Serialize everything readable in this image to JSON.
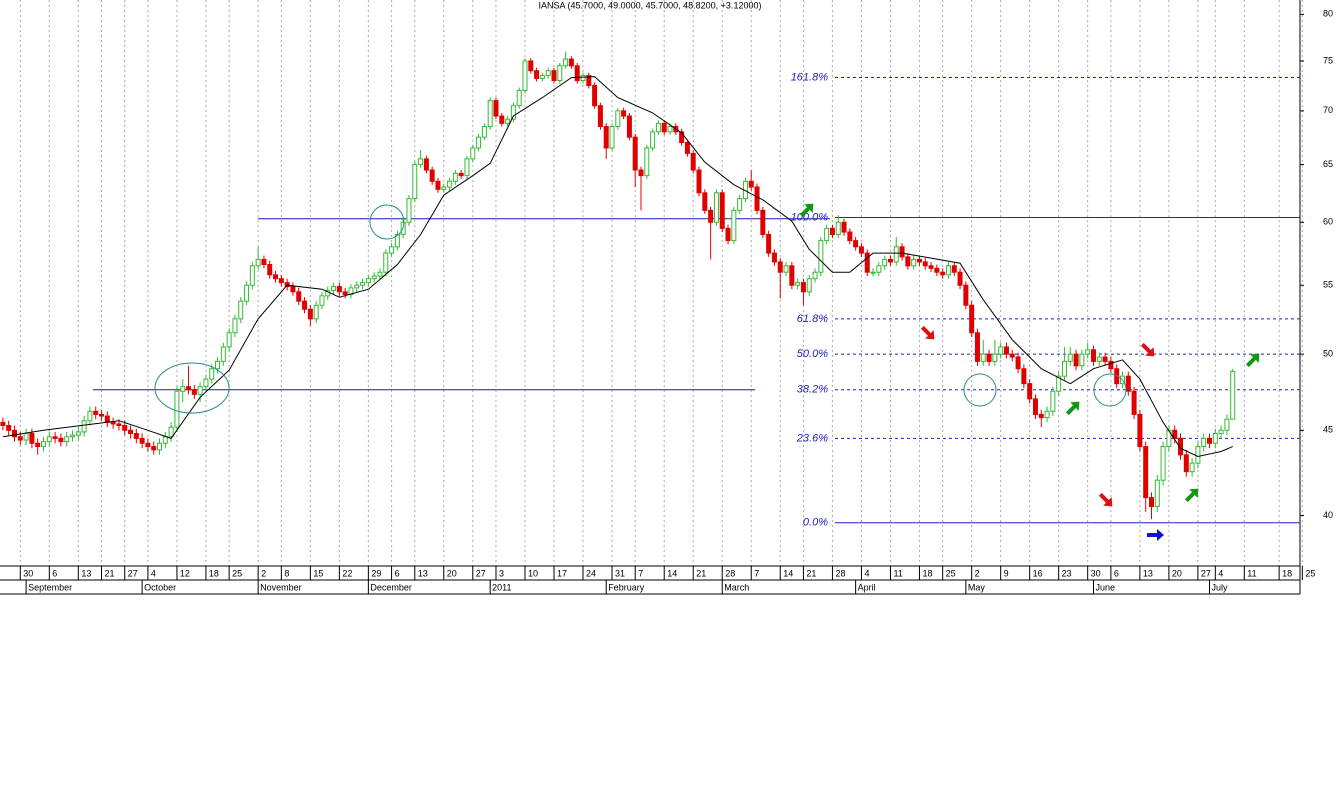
{
  "chart_data": {
    "type": "candlestick",
    "title": "IANSA (45.7000, 49.0000, 45.7000, 48.8200, +3.12000)",
    "ylog": true,
    "ylim": [
      37.3,
      81.6
    ],
    "yticks": [
      40,
      45,
      50,
      55,
      60,
      65,
      70,
      75,
      80
    ],
    "xlim": [
      -0.5,
      223.6
    ],
    "xticks": [
      {
        "value": 3,
        "label": "30"
      },
      {
        "value": 8,
        "label": "6"
      },
      {
        "value": 13,
        "label": "13"
      },
      {
        "value": 17,
        "label": "21"
      },
      {
        "value": 21,
        "label": "27"
      },
      {
        "value": 25,
        "label": "4"
      },
      {
        "value": 30,
        "label": "12"
      },
      {
        "value": 35,
        "label": "18"
      },
      {
        "value": 39,
        "label": "25"
      },
      {
        "value": 44,
        "label": "2"
      },
      {
        "value": 48,
        "label": "8"
      },
      {
        "value": 53,
        "label": "15"
      },
      {
        "value": 58,
        "label": "22"
      },
      {
        "value": 63,
        "label": "29"
      },
      {
        "value": 67,
        "label": "6"
      },
      {
        "value": 71,
        "label": "13"
      },
      {
        "value": 76,
        "label": "20"
      },
      {
        "value": 81,
        "label": "27"
      },
      {
        "value": 85,
        "label": "3"
      },
      {
        "value": 90,
        "label": "10"
      },
      {
        "value": 95,
        "label": "17"
      },
      {
        "value": 100,
        "label": "24"
      },
      {
        "value": 105,
        "label": "31"
      },
      {
        "value": 109,
        "label": "7"
      },
      {
        "value": 114,
        "label": "14"
      },
      {
        "value": 119,
        "label": "21"
      },
      {
        "value": 124,
        "label": "28"
      },
      {
        "value": 129,
        "label": "7"
      },
      {
        "value": 134,
        "label": "14"
      },
      {
        "value": 138,
        "label": "21"
      },
      {
        "value": 143,
        "label": "28"
      },
      {
        "value": 148,
        "label": "4"
      },
      {
        "value": 153,
        "label": "11"
      },
      {
        "value": 158,
        "label": "18"
      },
      {
        "value": 162,
        "label": "25"
      },
      {
        "value": 167,
        "label": "2"
      },
      {
        "value": 172,
        "label": "9"
      },
      {
        "value": 177,
        "label": "16"
      },
      {
        "value": 182,
        "label": "23"
      },
      {
        "value": 187,
        "label": "30"
      },
      {
        "value": 191,
        "label": "6"
      },
      {
        "value": 196,
        "label": "13"
      },
      {
        "value": 201,
        "label": "20"
      },
      {
        "value": 206,
        "label": "27"
      },
      {
        "value": 209,
        "label": "4"
      },
      {
        "value": 214,
        "label": "11"
      },
      {
        "value": 220,
        "label": "18"
      },
      {
        "value": 224,
        "label": "25"
      }
    ],
    "months": [
      {
        "value": 4,
        "label": "September"
      },
      {
        "value": 24,
        "label": "October"
      },
      {
        "value": 44,
        "label": "November"
      },
      {
        "value": 63,
        "label": "December"
      },
      {
        "value": 84,
        "label": "2011"
      },
      {
        "value": 104,
        "label": "February"
      },
      {
        "value": 124,
        "label": "March"
      },
      {
        "value": 147,
        "label": "April"
      },
      {
        "value": 166,
        "label": "May"
      },
      {
        "value": 188,
        "label": "June"
      },
      {
        "value": 208,
        "label": "July"
      }
    ],
    "up_color": "#33bb33",
    "down_color": "#e00000",
    "open": [
      45.5,
      45.3,
      45.0,
      44.6,
      44.4,
      44.8,
      44.2,
      44.0,
      44.3,
      44.6,
      44.5,
      44.3,
      44.6,
      44.7,
      44.9,
      45.6,
      46.2,
      46.0,
      45.9,
      45.5,
      45.4,
      45.3,
      45.0,
      44.8,
      44.5,
      44.2,
      44.0,
      43.8,
      44.2,
      44.6,
      45.2,
      47.5,
      47.8,
      47.6,
      47.3,
      47.8,
      48.3,
      49.0,
      49.5,
      50.5,
      51.5,
      52.5,
      53.8,
      55.0,
      56.5,
      57.0,
      56.6,
      55.8,
      55.5,
      55.2,
      54.9,
      54.5,
      53.8,
      53.2,
      52.5,
      53.5,
      54.2,
      54.6,
      54.9,
      54.5,
      54.3,
      54.8,
      55.0,
      55.2,
      55.5,
      55.7,
      56.0,
      57.5,
      58.0,
      59.0,
      60.0,
      62.0,
      65.0,
      65.5,
      64.5,
      63.5,
      62.8,
      63.0,
      63.5,
      64.2,
      64.0,
      65.5,
      66.5,
      67.5,
      68.5,
      71.0,
      69.5,
      68.8,
      69.2,
      70.5,
      72.0,
      75.0,
      74.0,
      73.2,
      73.5,
      74.0,
      73.0,
      74.5,
      75.2,
      74.5,
      73.0,
      73.5,
      72.5,
      70.5,
      68.5,
      66.5,
      68.5,
      70.0,
      69.5,
      67.5,
      64.5,
      64.0,
      66.5,
      68.0,
      68.8,
      68.0,
      68.5,
      68.0,
      67.0,
      66.0,
      64.5,
      62.5,
      61.0,
      60.0,
      62.5,
      59.5,
      58.5,
      61.0,
      62.0,
      63.5,
      63.0,
      61.0,
      59.0,
      57.5,
      56.8,
      56.0,
      56.5,
      55.0,
      55.2,
      54.5,
      55.5,
      56.0,
      58.5,
      59.5,
      59.0,
      60.0,
      59.2,
      58.5,
      58.0,
      57.5,
      56.0,
      56.0,
      56.5,
      57.0,
      56.8,
      58.0,
      57.2,
      56.5,
      57.0,
      56.8,
      56.5,
      56.3,
      56.0,
      55.8,
      56.5,
      56.0,
      55.0,
      53.5,
      51.5,
      49.5,
      50.0,
      49.5,
      50.0,
      50.5,
      50.0,
      49.8,
      49.0,
      48.0,
      47.0,
      46.0,
      45.8,
      46.2,
      47.5,
      48.5,
      49.5,
      50.0,
      49.2,
      50.0,
      50.3,
      49.5,
      49.8,
      49.5,
      49.0,
      48.0,
      48.5,
      47.5,
      46.0,
      44.0,
      41.0,
      40.5,
      42.0,
      44.0,
      45.0,
      44.5,
      43.5,
      42.5,
      43.0,
      44.0,
      44.5,
      44.2,
      44.8,
      45.0,
      45.7
    ],
    "high": [
      45.8,
      45.6,
      45.3,
      44.9,
      45.1,
      45.1,
      44.5,
      44.6,
      44.9,
      44.9,
      44.8,
      44.9,
      45.0,
      45.2,
      45.9,
      46.5,
      46.5,
      46.3,
      46.2,
      45.8,
      45.7,
      45.6,
      45.3,
      45.1,
      44.8,
      44.5,
      44.3,
      44.5,
      44.9,
      45.5,
      47.8,
      48.3,
      49.2,
      47.9,
      48.1,
      48.6,
      49.3,
      49.8,
      50.8,
      51.8,
      52.8,
      54.1,
      55.3,
      56.8,
      58.0,
      57.3,
      56.9,
      56.1,
      55.8,
      55.5,
      55.2,
      54.8,
      54.1,
      53.5,
      53.8,
      54.5,
      54.9,
      55.2,
      55.2,
      54.8,
      55.1,
      55.3,
      55.5,
      55.8,
      56.0,
      56.3,
      57.8,
      58.3,
      59.3,
      60.3,
      62.3,
      65.3,
      66.3,
      65.8,
      64.8,
      63.8,
      63.3,
      63.8,
      64.5,
      64.5,
      65.8,
      66.8,
      67.8,
      68.8,
      71.3,
      71.3,
      69.8,
      69.5,
      70.8,
      72.3,
      75.3,
      75.3,
      74.3,
      73.8,
      74.3,
      74.3,
      74.8,
      76.0,
      75.5,
      74.8,
      73.8,
      73.8,
      72.8,
      70.8,
      68.8,
      68.8,
      70.3,
      70.3,
      69.8,
      67.8,
      64.8,
      66.8,
      68.3,
      69.1,
      69.1,
      68.8,
      68.8,
      68.3,
      67.3,
      66.3,
      64.8,
      62.8,
      61.3,
      62.8,
      62.8,
      59.8,
      61.3,
      62.3,
      63.8,
      64.5,
      63.3,
      61.3,
      59.3,
      57.8,
      57.1,
      56.8,
      56.8,
      55.5,
      55.5,
      55.8,
      56.3,
      58.8,
      59.8,
      59.8,
      60.6,
      60.3,
      59.5,
      58.8,
      58.3,
      57.8,
      56.3,
      56.8,
      57.3,
      57.3,
      58.8,
      58.3,
      57.5,
      57.3,
      57.3,
      57.1,
      56.8,
      56.6,
      56.3,
      56.8,
      56.8,
      56.3,
      55.3,
      53.8,
      51.8,
      51.0,
      50.3,
      51.0,
      50.8,
      50.8,
      50.3,
      50.1,
      49.3,
      48.3,
      47.3,
      46.3,
      46.5,
      47.8,
      48.8,
      50.5,
      50.5,
      50.3,
      50.3,
      50.8,
      50.6,
      50.1,
      50.1,
      49.8,
      49.3,
      48.8,
      48.8,
      47.8,
      46.3,
      44.3,
      41.3,
      42.3,
      44.3,
      45.3,
      45.3,
      44.8,
      43.8,
      43.3,
      44.3,
      44.8,
      44.8,
      45.1,
      45.3,
      46.0,
      49.0
    ],
    "low": [
      45.0,
      44.7,
      44.3,
      44.1,
      44.1,
      43.9,
      43.5,
      43.7,
      44.0,
      44.2,
      44.0,
      44.0,
      44.3,
      44.4,
      44.6,
      45.3,
      45.7,
      45.6,
      45.2,
      45.1,
      45.0,
      44.7,
      44.5,
      44.2,
      43.9,
      43.7,
      43.5,
      43.5,
      43.9,
      44.3,
      44.9,
      46.8,
      47.3,
      47.0,
      46.8,
      47.5,
      48.0,
      48.7,
      49.2,
      50.2,
      51.2,
      52.2,
      53.5,
      54.7,
      56.2,
      56.3,
      55.5,
      55.2,
      54.9,
      54.6,
      54.2,
      53.5,
      52.9,
      52.0,
      52.2,
      53.2,
      53.9,
      54.3,
      54.2,
      54.0,
      54.0,
      54.5,
      54.7,
      54.9,
      55.2,
      55.4,
      55.7,
      57.2,
      57.7,
      58.7,
      59.7,
      61.7,
      64.7,
      64.2,
      63.2,
      62.5,
      62.5,
      62.7,
      63.2,
      63.7,
      63.7,
      65.2,
      66.2,
      67.2,
      68.2,
      69.2,
      68.5,
      68.5,
      68.9,
      70.2,
      71.7,
      73.7,
      72.9,
      72.9,
      73.2,
      72.7,
      72.7,
      74.2,
      74.2,
      72.7,
      72.7,
      72.2,
      70.2,
      68.2,
      65.5,
      66.2,
      68.2,
      69.2,
      67.2,
      63.0,
      61.0,
      63.7,
      66.2,
      67.7,
      67.7,
      67.7,
      67.7,
      66.7,
      65.7,
      64.2,
      62.2,
      60.7,
      57.0,
      59.7,
      59.2,
      58.2,
      58.2,
      60.7,
      61.7,
      62.7,
      60.7,
      58.7,
      57.2,
      56.5,
      54.0,
      55.7,
      54.7,
      54.7,
      53.5,
      54.2,
      55.2,
      55.7,
      58.2,
      58.7,
      58.7,
      58.9,
      58.2,
      57.7,
      57.2,
      55.7,
      55.7,
      55.7,
      56.2,
      56.5,
      56.5,
      56.9,
      56.2,
      56.2,
      56.5,
      56.2,
      56.0,
      55.7,
      55.5,
      55.5,
      55.7,
      54.7,
      53.2,
      51.2,
      49.2,
      49.2,
      49.2,
      49.2,
      49.7,
      49.7,
      49.5,
      48.7,
      47.7,
      46.7,
      45.7,
      45.2,
      45.5,
      45.9,
      47.2,
      48.2,
      49.2,
      48.9,
      48.9,
      49.7,
      49.2,
      49.2,
      49.2,
      48.7,
      47.7,
      47.7,
      47.2,
      45.7,
      43.7,
      40.2,
      39.8,
      40.2,
      41.7,
      43.7,
      44.2,
      43.2,
      42.2,
      42.2,
      42.7,
      43.7,
      43.9,
      43.9,
      44.5,
      44.7,
      45.7
    ],
    "close": [
      45.3,
      45.0,
      44.6,
      44.4,
      44.8,
      44.2,
      44.0,
      44.3,
      44.6,
      44.5,
      44.3,
      44.6,
      44.7,
      44.9,
      45.6,
      46.2,
      46.0,
      45.9,
      45.5,
      45.4,
      45.3,
      45.0,
      44.8,
      44.5,
      44.2,
      44.0,
      43.8,
      44.2,
      44.6,
      45.2,
      47.5,
      47.8,
      47.6,
      47.3,
      47.8,
      48.3,
      49.0,
      49.5,
      50.5,
      51.5,
      52.5,
      53.8,
      55.0,
      56.5,
      57.0,
      56.6,
      55.8,
      55.5,
      55.2,
      54.9,
      54.5,
      53.8,
      53.2,
      52.5,
      53.5,
      54.2,
      54.6,
      54.9,
      54.5,
      54.3,
      54.8,
      55.0,
      55.2,
      55.5,
      55.7,
      56.0,
      57.5,
      58.0,
      59.0,
      60.0,
      62.0,
      65.0,
      65.5,
      64.5,
      63.5,
      62.8,
      63.0,
      63.5,
      64.2,
      64.0,
      65.5,
      66.5,
      67.5,
      68.5,
      71.0,
      69.5,
      68.8,
      69.2,
      70.5,
      72.0,
      75.0,
      74.0,
      73.2,
      73.5,
      74.0,
      73.0,
      74.5,
      75.2,
      74.5,
      73.0,
      73.5,
      72.5,
      70.5,
      68.5,
      66.5,
      68.5,
      70.0,
      69.5,
      67.5,
      64.5,
      64.0,
      66.5,
      68.0,
      68.8,
      68.0,
      68.5,
      68.0,
      67.0,
      66.0,
      64.5,
      62.5,
      61.0,
      60.0,
      62.5,
      59.5,
      58.5,
      61.0,
      62.0,
      63.5,
      63.0,
      61.0,
      59.0,
      57.5,
      56.8,
      56.0,
      56.5,
      55.0,
      55.2,
      54.5,
      55.5,
      56.0,
      58.5,
      59.5,
      59.0,
      60.0,
      59.2,
      58.5,
      58.0,
      57.5,
      56.0,
      56.0,
      56.5,
      57.0,
      56.8,
      58.0,
      57.2,
      56.5,
      57.0,
      56.8,
      56.5,
      56.3,
      56.0,
      55.8,
      56.5,
      56.0,
      55.0,
      53.5,
      51.5,
      49.5,
      50.0,
      49.5,
      50.0,
      50.5,
      50.0,
      49.8,
      49.0,
      48.0,
      47.0,
      46.0,
      45.8,
      46.2,
      47.5,
      48.5,
      49.5,
      50.0,
      49.2,
      50.0,
      50.3,
      49.5,
      49.8,
      49.5,
      49.0,
      48.0,
      48.5,
      47.5,
      46.0,
      44.0,
      41.0,
      40.5,
      42.0,
      44.0,
      45.0,
      44.5,
      43.5,
      42.5,
      43.0,
      44.0,
      44.5,
      44.2,
      44.8,
      45.0,
      45.7,
      48.82
    ],
    "ma": {
      "color": "#000000",
      "x": [
        0,
        7,
        20,
        25,
        29,
        34,
        39,
        44,
        49,
        55,
        58,
        63,
        68,
        72,
        76,
        81,
        84,
        88,
        93,
        98,
        102,
        106,
        112,
        117,
        121,
        126,
        131,
        136,
        139,
        143,
        146,
        150,
        155,
        160,
        165,
        169,
        174,
        179,
        184,
        188,
        193,
        196,
        200,
        203,
        206,
        210,
        212
      ],
      "values": [
        44.6,
        45.0,
        45.6,
        45.0,
        44.5,
        47.1,
        48.9,
        52.5,
        55.0,
        54.7,
        54.1,
        54.7,
        56.6,
        59.0,
        62.3,
        64.0,
        65.1,
        69.5,
        71.3,
        73.3,
        73.4,
        71.3,
        69.8,
        67.9,
        65.2,
        63.2,
        61.9,
        60.1,
        57.8,
        56.0,
        56.0,
        57.5,
        57.5,
        57.1,
        56.7,
        53.9,
        51.0,
        49.0,
        48.0,
        49.0,
        49.6,
        48.3,
        45.5,
        43.9,
        43.4,
        43.7,
        44.0
      ]
    },
    "support_lines": [
      {
        "value": 60.3
      },
      {
        "value": 47.6
      }
    ],
    "fib_color": "#2020c0",
    "fib_levels": [
      {
        "label": "161.8%",
        "value": 73.3,
        "line_style": "dashed"
      },
      {
        "label": "100.0%",
        "value": 60.4,
        "line_style": "solid"
      },
      {
        "label": "61.8%",
        "value": 52.5,
        "line_style": "dashed"
      },
      {
        "label": "50.0%",
        "value": 50.0,
        "line_style": "dashed"
      },
      {
        "label": "38.2%",
        "value": 47.6,
        "line_style": "dashed"
      },
      {
        "label": "23.6%",
        "value": 44.5,
        "line_style": "dashed"
      },
      {
        "label": "0.0%",
        "value": 39.6,
        "line_style": "solid"
      }
    ]
  }
}
